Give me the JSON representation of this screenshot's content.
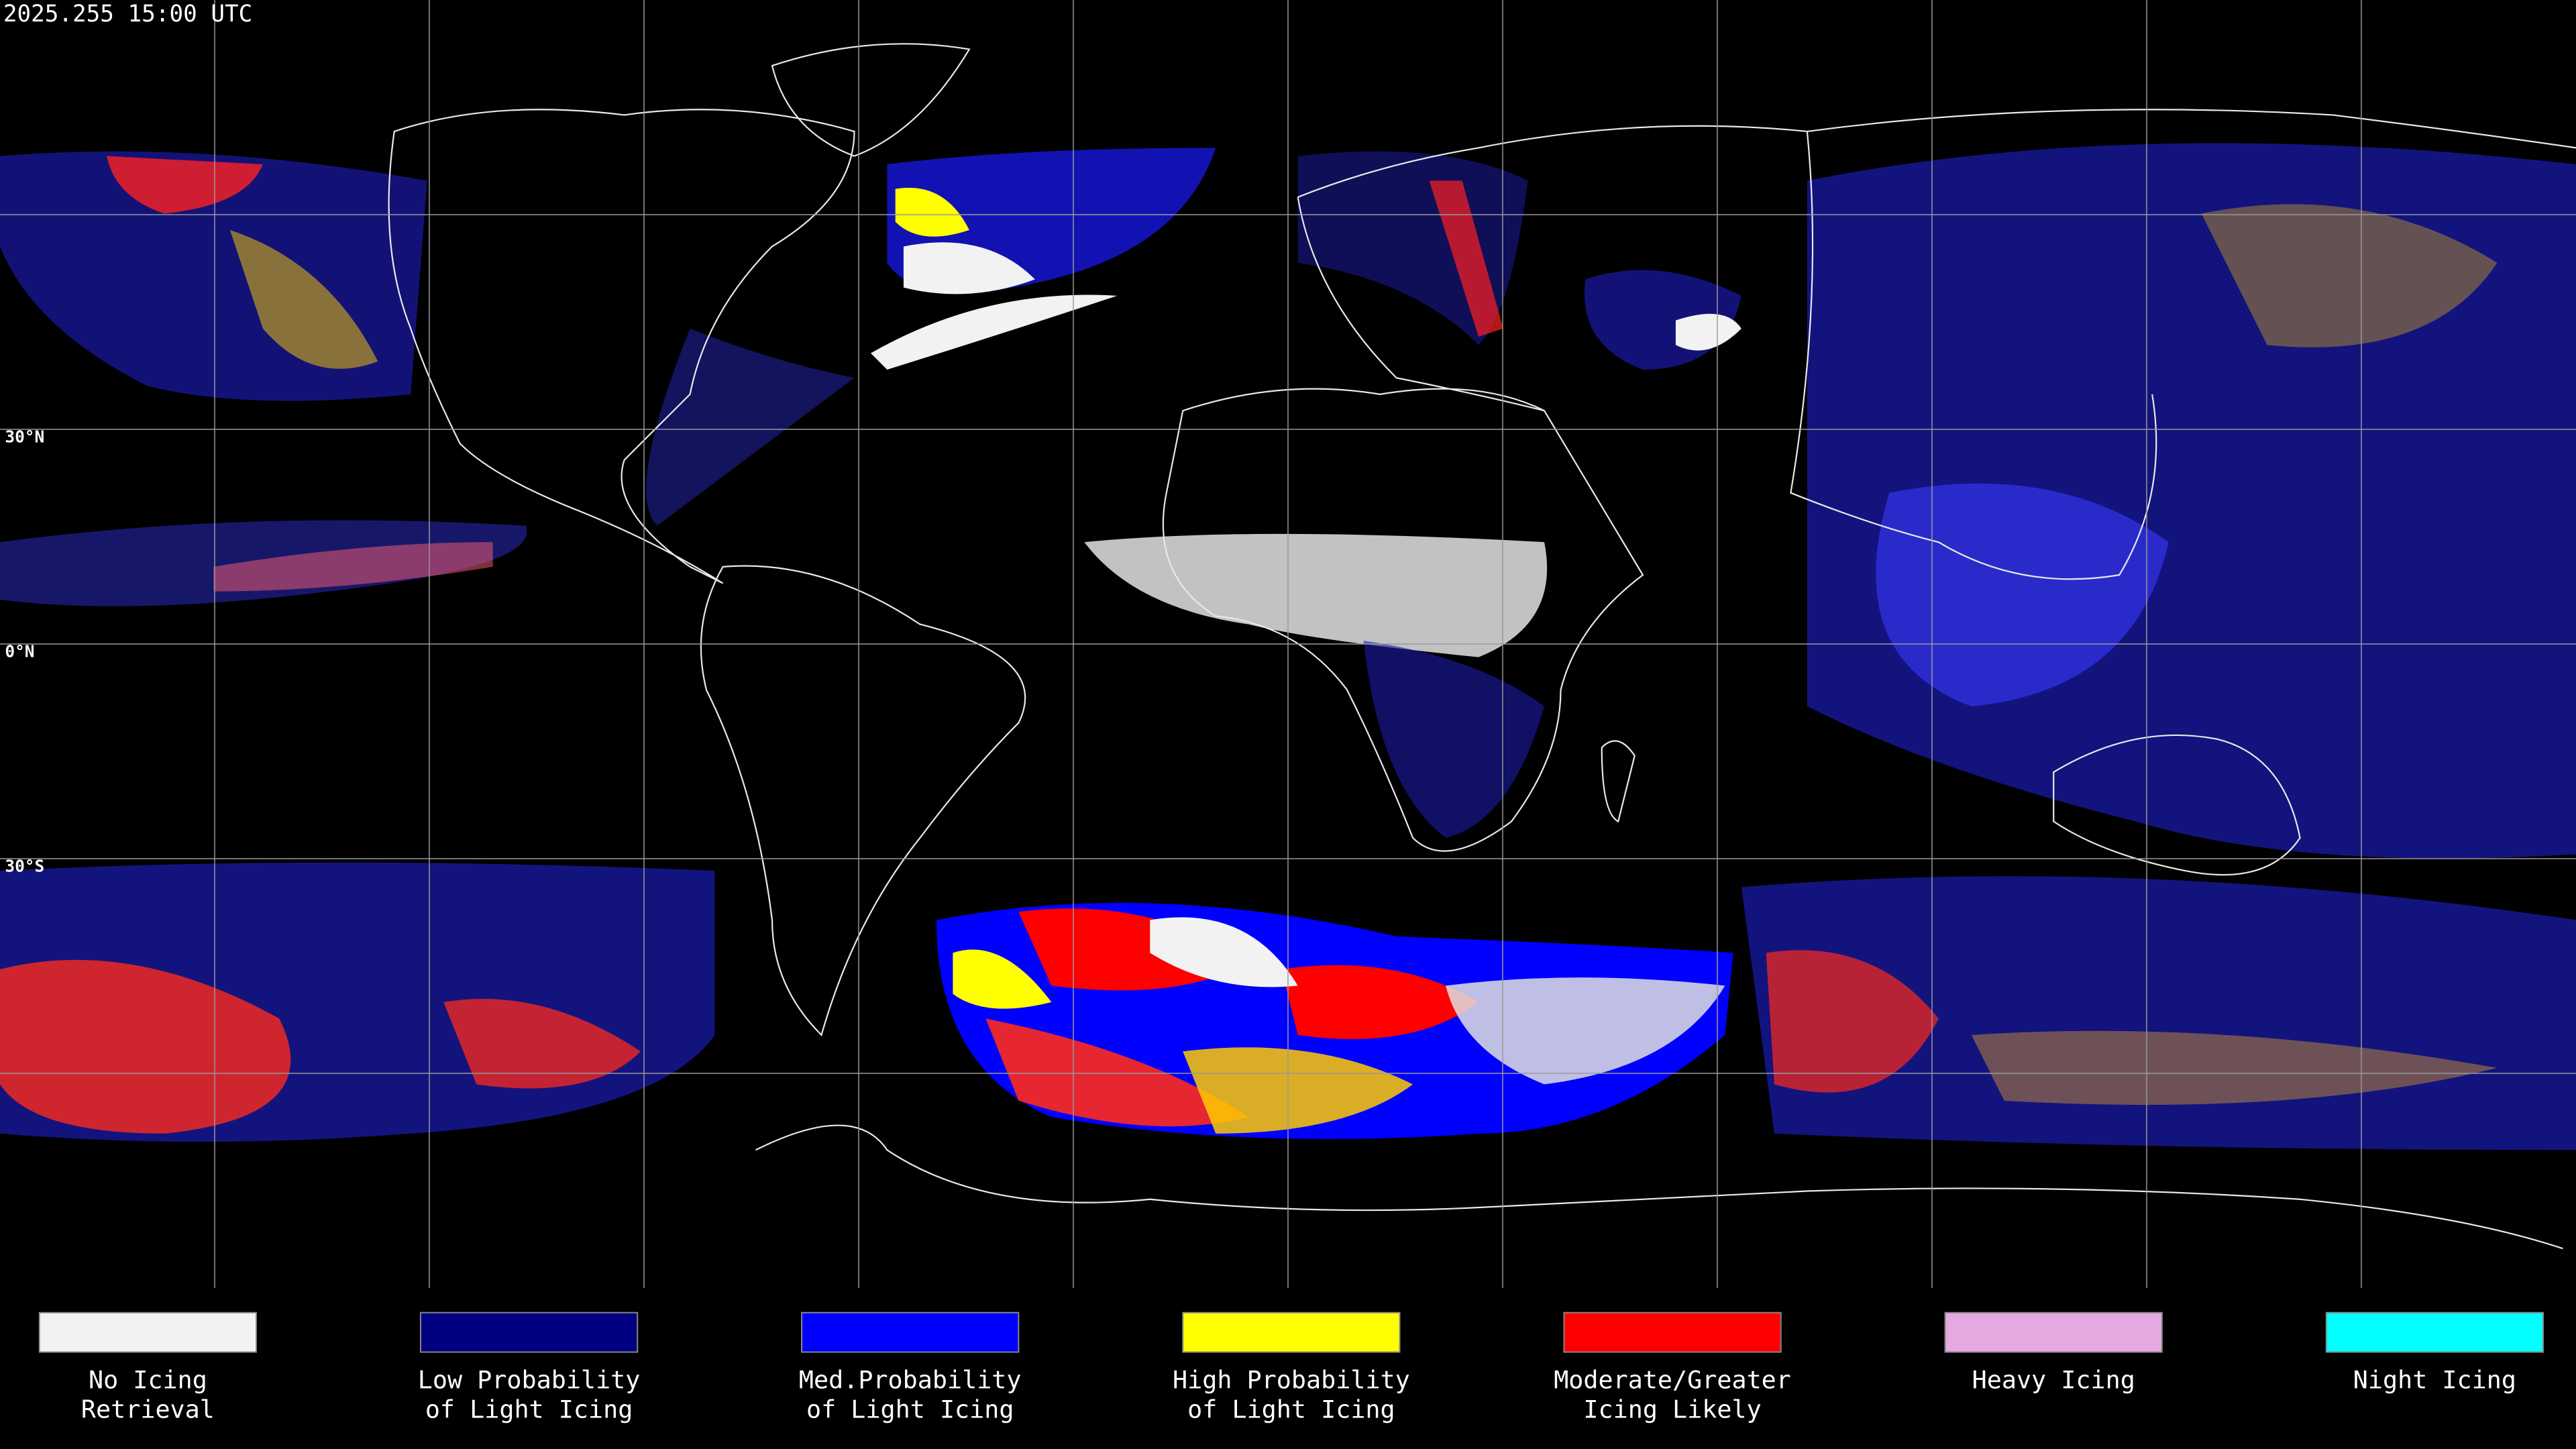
{
  "header": {
    "timestamp": "2025.255 15:00 UTC"
  },
  "map": {
    "latitude_labels": [
      "30°N",
      "0°N",
      "30°S"
    ]
  },
  "legend": {
    "items": [
      {
        "lines": [
          "No Icing",
          "Retrieval"
        ],
        "color": "#f2f2f2"
      },
      {
        "lines": [
          "Low Probability",
          "of Light Icing"
        ],
        "color": "#000080"
      },
      {
        "lines": [
          "Med.Probability",
          "of Light Icing"
        ],
        "color": "#0000ff"
      },
      {
        "lines": [
          "High Probability",
          "of Light Icing"
        ],
        "color": "#ffff00"
      },
      {
        "lines": [
          "Moderate/Greater",
          "Icing Likely"
        ],
        "color": "#ff0000"
      },
      {
        "lines": [
          "Heavy Icing"
        ],
        "color": "#e6a8e0"
      },
      {
        "lines": [
          "Night Icing"
        ],
        "color": "#00ffff"
      }
    ]
  }
}
